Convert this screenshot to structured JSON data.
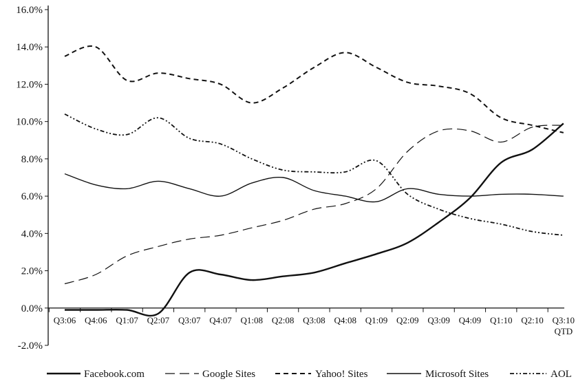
{
  "chart_data": {
    "type": "line",
    "title": "",
    "xlabel": "",
    "ylabel": "",
    "ylim": [
      -2,
      16
    ],
    "yticks": [
      -2,
      0,
      2,
      4,
      6,
      8,
      10,
      12,
      14,
      16
    ],
    "ytick_labels": [
      "-2.0%",
      "0.0%",
      "2.0%",
      "4.0%",
      "6.0%",
      "8.0%",
      "10.0%",
      "12.0%",
      "14.0%",
      "16.0%"
    ],
    "categories": [
      "Q3:06",
      "Q4:06",
      "Q1:07",
      "Q2:07",
      "Q3:07",
      "Q4:07",
      "Q1:08",
      "Q2:08",
      "Q3:08",
      "Q4:08",
      "Q1:09",
      "Q2:09",
      "Q3:09",
      "Q4:09",
      "Q1:10",
      "Q2:10",
      "Q3:10"
    ],
    "category_sublabels": [
      "",
      "",
      "",
      "",
      "",
      "",
      "",
      "",
      "",
      "",
      "",
      "",
      "",
      "",
      "",
      "",
      "QTD"
    ],
    "legend_position": "bottom",
    "grid": false,
    "series": [
      {
        "name": "Facebook.com",
        "style": "solid-thick",
        "color": "#111111",
        "values": [
          -0.1,
          -0.1,
          -0.1,
          -0.3,
          1.9,
          1.8,
          1.5,
          1.7,
          1.9,
          2.4,
          2.9,
          3.5,
          4.6,
          5.9,
          7.8,
          8.5,
          9.9
        ]
      },
      {
        "name": "Google Sites",
        "style": "long-dash",
        "color": "#111111",
        "values": [
          1.3,
          1.8,
          2.8,
          3.3,
          3.7,
          3.9,
          4.3,
          4.7,
          5.3,
          5.6,
          6.4,
          8.4,
          9.5,
          9.5,
          8.9,
          9.7,
          9.8
        ]
      },
      {
        "name": "Yahoo! Sites",
        "style": "short-dash",
        "color": "#111111",
        "values": [
          13.5,
          14.0,
          12.2,
          12.6,
          12.3,
          12.0,
          11.0,
          11.8,
          12.9,
          13.7,
          12.9,
          12.1,
          11.9,
          11.5,
          10.2,
          9.8,
          9.4
        ]
      },
      {
        "name": "Microsoft Sites",
        "style": "solid-thin",
        "color": "#111111",
        "values": [
          7.2,
          6.6,
          6.4,
          6.8,
          6.4,
          6.0,
          6.7,
          7.0,
          6.3,
          6.0,
          5.7,
          6.4,
          6.1,
          6.0,
          6.1,
          6.1,
          6.0
        ]
      },
      {
        "name": "AOL",
        "style": "dash-dot-dot",
        "color": "#111111",
        "values": [
          10.4,
          9.6,
          9.3,
          10.2,
          9.1,
          8.8,
          8.0,
          7.4,
          7.3,
          7.3,
          7.9,
          6.1,
          5.3,
          4.8,
          4.5,
          4.1,
          3.9
        ]
      }
    ]
  }
}
